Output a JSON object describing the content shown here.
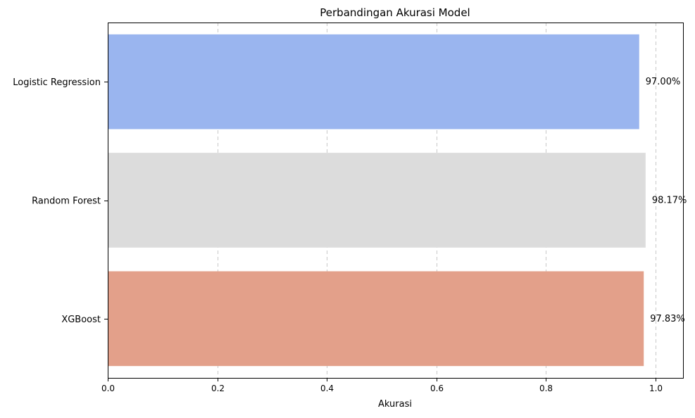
{
  "chart_data": {
    "type": "bar",
    "orientation": "horizontal",
    "title": "Perbandingan Akurasi Model",
    "xlabel": "Akurasi",
    "ylabel": "",
    "categories": [
      "Logistic Regression",
      "Random Forest",
      "XGBoost"
    ],
    "values": [
      0.97,
      0.9817,
      0.9783
    ],
    "value_labels": [
      "97.00%",
      "98.17%",
      "97.83%"
    ],
    "colors": [
      "#9ab5ef",
      "#dcdcdc",
      "#e3a08a"
    ],
    "xlim": [
      0,
      1.05
    ],
    "xticks": [
      0.0,
      0.2,
      0.4,
      0.6,
      0.8,
      1.0
    ],
    "xtick_labels": [
      "0.0",
      "0.2",
      "0.4",
      "0.6",
      "0.8",
      "1.0"
    ],
    "grid": "x-dashed"
  }
}
